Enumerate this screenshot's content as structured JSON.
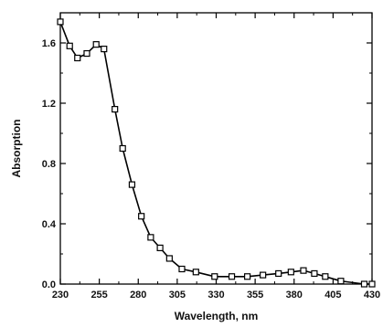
{
  "chart_data": {
    "type": "line",
    "title": "",
    "xlabel": "Wavelength, nm",
    "ylabel": "Absorption",
    "xlim": [
      230,
      430
    ],
    "ylim": [
      0.0,
      1.8
    ],
    "x_ticks": [
      "230",
      "255",
      "280",
      "305",
      "330",
      "355",
      "380",
      "405",
      "430"
    ],
    "y_ticks": [
      "0.0",
      "0.4",
      "0.8",
      "1.2",
      "1.6"
    ],
    "grid": false,
    "legend": "none",
    "marker": "open-square",
    "line_color": "#000000",
    "series": [
      {
        "x": [
          230,
          236,
          241,
          247,
          253,
          258,
          265,
          270,
          276,
          282,
          288,
          294,
          300,
          308,
          317,
          329,
          340,
          350,
          360,
          370,
          378,
          386,
          393,
          400,
          410,
          425,
          430
        ],
        "y": [
          1.74,
          1.58,
          1.5,
          1.53,
          1.59,
          1.56,
          1.16,
          0.9,
          0.66,
          0.45,
          0.31,
          0.24,
          0.17,
          0.1,
          0.08,
          0.05,
          0.05,
          0.05,
          0.06,
          0.07,
          0.08,
          0.09,
          0.07,
          0.05,
          0.02,
          0.0,
          0.0
        ]
      }
    ]
  }
}
